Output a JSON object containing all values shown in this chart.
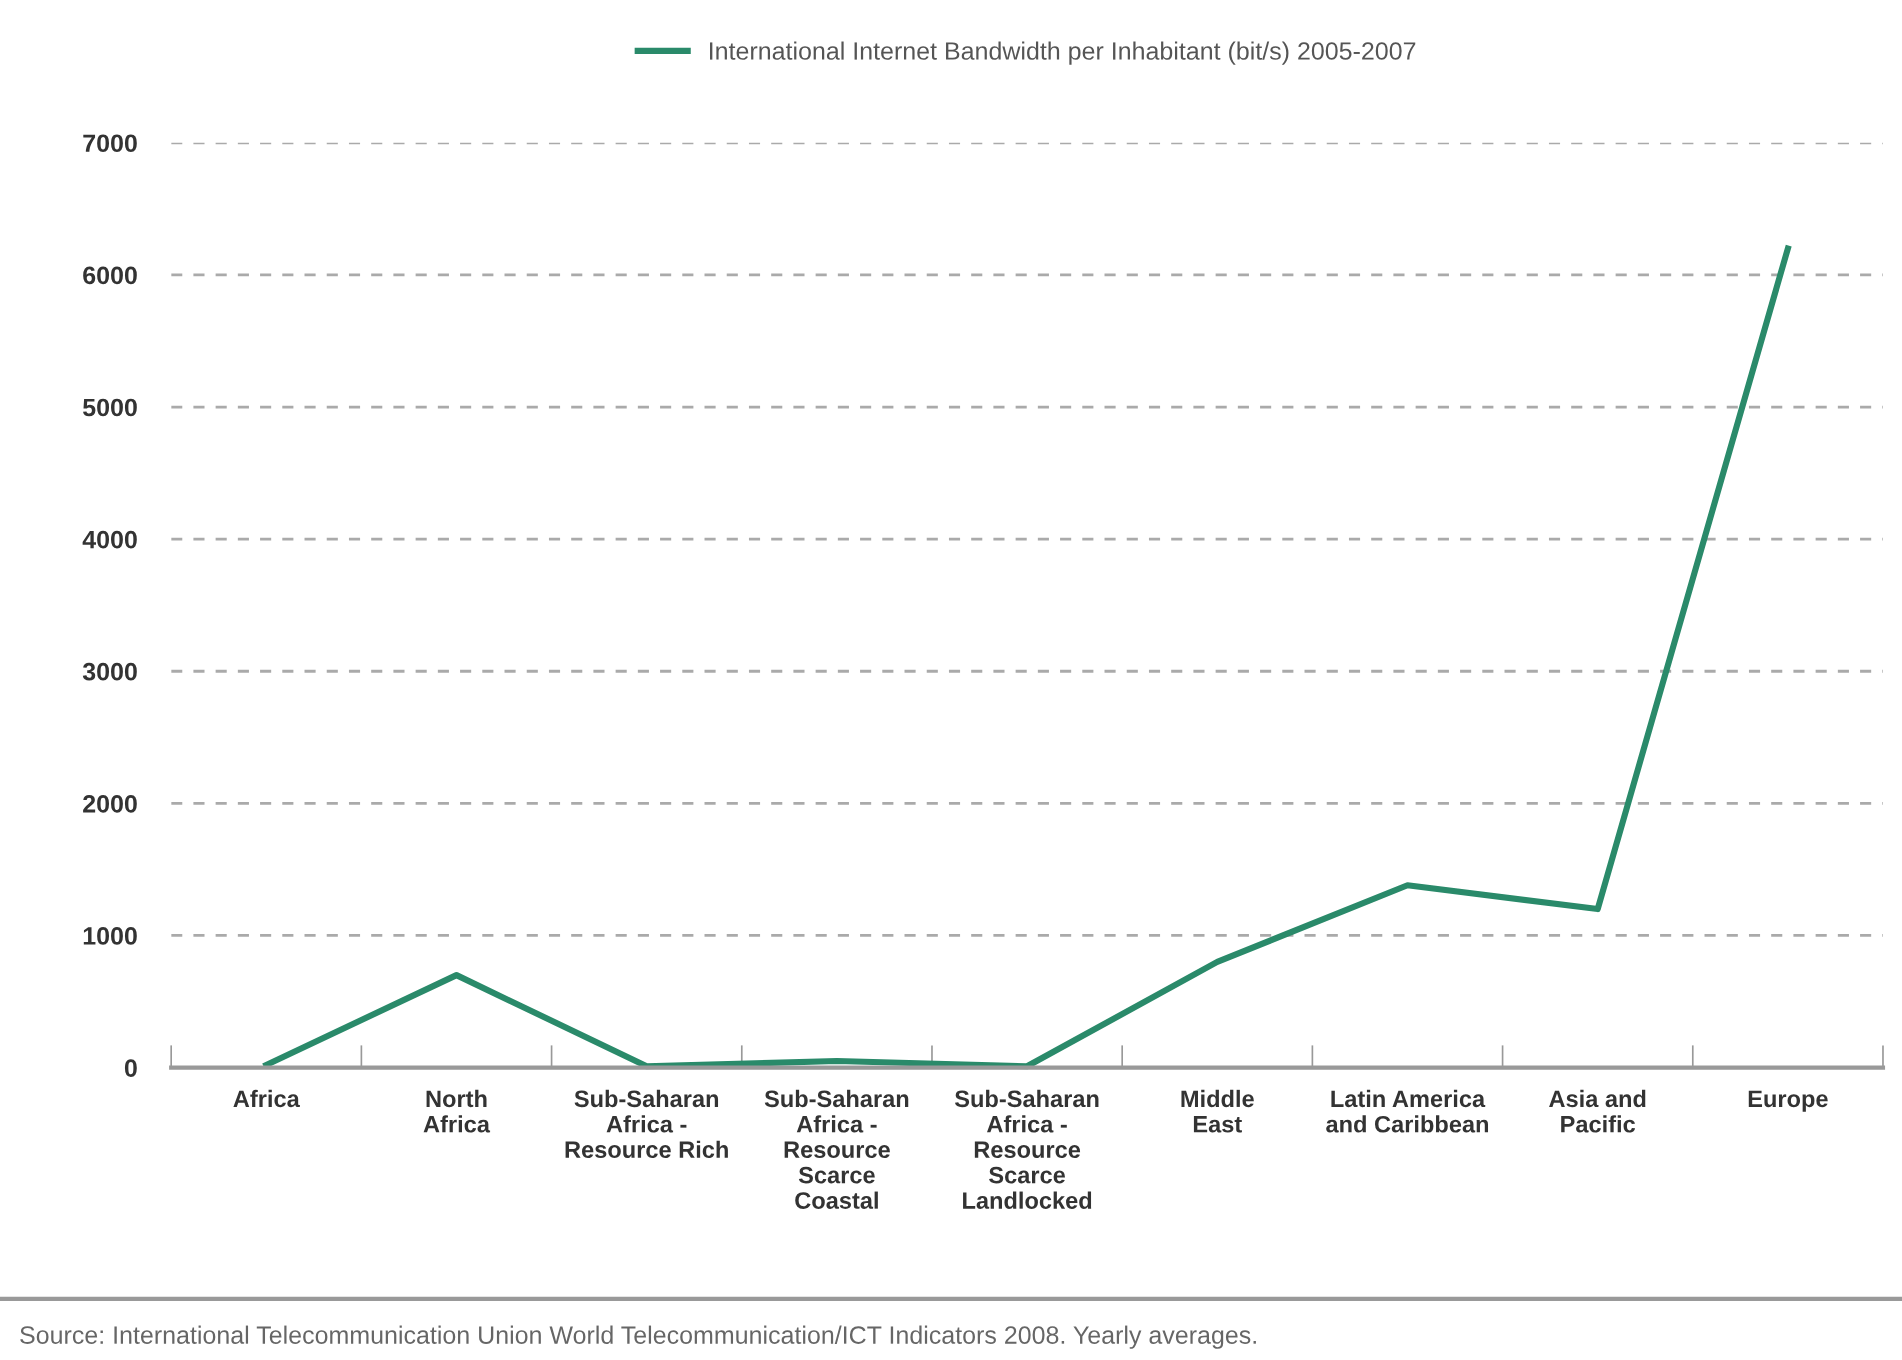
{
  "chart_data": {
    "type": "line",
    "categories": [
      "Africa",
      "North\nAfrica",
      "Sub-Saharan\nAfrica -\nResource Rich",
      "Sub-Saharan\nAfrica -\nResource\nScarce\nCoastal",
      "Sub-Saharan\nAfrica -\nResource\nScarce\nLandlocked",
      "Middle\nEast",
      "Latin America\nand Caribbean",
      "Asia and\nPacific",
      "Europe"
    ],
    "series": [
      {
        "name": "International Internet Bandwidth per Inhabitant (bit/s) 2005-2007",
        "color": "#2a8a6a",
        "values": [
          20,
          700,
          10,
          50,
          10,
          800,
          1380,
          1200,
          6200
        ]
      }
    ],
    "ylim": [
      0,
      7000
    ],
    "yticks": [
      0,
      1000,
      2000,
      3000,
      4000,
      5000,
      6000,
      7000
    ],
    "grid": "y",
    "legend": "top",
    "marker": "none",
    "line_style": "solid",
    "annotations": [
      "Source: International Telecommunication Union World Telecommunication/ICT Indicators 2008. Yearly averages."
    ]
  }
}
